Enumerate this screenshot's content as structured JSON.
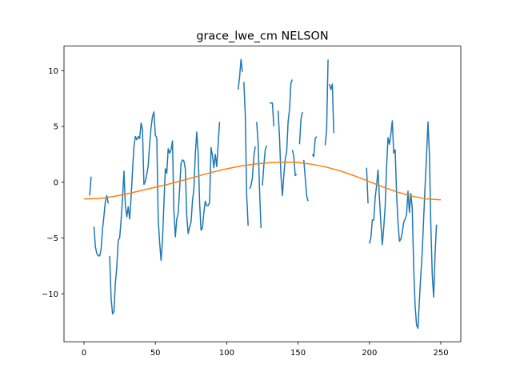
{
  "chart_data": {
    "type": "line",
    "title": "grace_lwe_cm NELSON",
    "xlabel": "",
    "ylabel": "",
    "xlim": [
      -14,
      264
    ],
    "ylim": [
      -14.3,
      12.2
    ],
    "xticks": [
      0,
      50,
      100,
      150,
      200,
      250
    ],
    "yticks": [
      -10,
      -5,
      0,
      5,
      10
    ],
    "grid": false,
    "legend": "none",
    "series": [
      {
        "color": "#1f77b4",
        "segments": [
          [
            [
              4,
              -1.2
            ],
            [
              5,
              0.5
            ]
          ],
          [
            [
              7,
              -4.0
            ],
            [
              8,
              -5.8
            ],
            [
              9,
              -6.4
            ],
            [
              10,
              -6.6
            ],
            [
              11,
              -6.6
            ],
            [
              12,
              -6.0
            ],
            [
              13,
              -4.2
            ],
            [
              14,
              -3.0
            ],
            [
              15,
              -1.7
            ],
            [
              16,
              -1.2
            ],
            [
              17,
              -1.9
            ]
          ],
          [
            [
              18,
              -6.6
            ],
            [
              19,
              -10.4
            ],
            [
              20,
              -11.8
            ],
            [
              21,
              -11.6
            ],
            [
              22,
              -9.0
            ],
            [
              23,
              -7.6
            ],
            [
              24,
              -5.2
            ],
            [
              25,
              -5.0
            ],
            [
              26,
              -3.4
            ],
            [
              27,
              -1.5
            ],
            [
              28,
              1.0
            ],
            [
              29,
              -2.1
            ],
            [
              30,
              -3.1
            ],
            [
              31,
              -2.2
            ],
            [
              32,
              -3.3
            ],
            [
              33,
              -1.4
            ],
            [
              34,
              1.0
            ],
            [
              35,
              3.2
            ],
            [
              36,
              4.1
            ],
            [
              37,
              3.8
            ],
            [
              38,
              4.1
            ],
            [
              39,
              3.9
            ],
            [
              40,
              5.3
            ],
            [
              41,
              4.7
            ],
            [
              42,
              -0.2
            ],
            [
              43,
              0.1
            ],
            [
              44,
              0.7
            ],
            [
              45,
              1.5
            ],
            [
              46,
              3.4
            ],
            [
              47,
              4.9
            ],
            [
              48,
              5.9
            ],
            [
              49,
              6.3
            ],
            [
              50,
              4.2
            ],
            [
              51,
              4.0
            ],
            [
              52,
              -3.3
            ],
            [
              53,
              -5.4
            ],
            [
              54,
              -7.0
            ],
            [
              55,
              -5.2
            ],
            [
              56,
              -1.9
            ],
            [
              57,
              1.2
            ],
            [
              58,
              0.8
            ],
            [
              59,
              3.0
            ],
            [
              60,
              2.6
            ],
            [
              61,
              2.9
            ],
            [
              62,
              3.7
            ],
            [
              63,
              -2.6
            ],
            [
              64,
              -4.9
            ],
            [
              65,
              -3.3
            ],
            [
              66,
              -2.8
            ],
            [
              67,
              -0.6
            ],
            [
              68,
              1.7
            ],
            [
              69,
              2.0
            ],
            [
              70,
              1.9
            ],
            [
              71,
              1.2
            ],
            [
              72,
              -3.0
            ],
            [
              73,
              -4.6
            ],
            [
              74,
              -4.0
            ],
            [
              75,
              -3.6
            ],
            [
              76,
              -1.7
            ],
            [
              77,
              -0.6
            ],
            [
              78,
              2.5
            ],
            [
              79,
              4.5
            ],
            [
              80,
              2.6
            ],
            [
              81,
              -1.8
            ],
            [
              82,
              -4.3
            ],
            [
              83,
              -4.1
            ],
            [
              84,
              -2.7
            ],
            [
              85,
              -1.7
            ],
            [
              86,
              -2.1
            ],
            [
              87,
              -2.1
            ],
            [
              88,
              -1.8
            ],
            [
              89,
              3.1
            ],
            [
              90,
              2.4
            ],
            [
              91,
              1.3
            ],
            [
              92,
              2.5
            ],
            [
              93,
              1.4
            ],
            [
              94,
              3.4
            ],
            [
              95,
              5.4
            ]
          ],
          [
            [
              108,
              8.3
            ],
            [
              109,
              9.4
            ],
            [
              110,
              11.0
            ],
            [
              111,
              9.9
            ]
          ],
          [
            [
              112,
              9.0
            ],
            [
              113,
              6.1
            ],
            [
              114,
              -1.2
            ],
            [
              115,
              -3.9
            ]
          ],
          [
            [
              116,
              -0.6
            ],
            [
              117,
              -0.3
            ],
            [
              118,
              0.4
            ],
            [
              119,
              2.3
            ],
            [
              120,
              3.2
            ]
          ],
          [
            [
              121,
              5.4
            ],
            [
              122,
              3.5
            ],
            [
              123,
              -0.6
            ],
            [
              124,
              -4.1
            ]
          ],
          [
            [
              125,
              -0.3
            ],
            [
              126,
              1.5
            ],
            [
              127,
              2.9
            ],
            [
              128,
              3.3
            ]
          ],
          [
            [
              130,
              7.1
            ],
            [
              131,
              7.1
            ],
            [
              132,
              7.1
            ],
            [
              133,
              5.0
            ]
          ],
          [
            [
              136,
              6.4
            ],
            [
              137,
              4.0
            ],
            [
              138,
              0.6
            ],
            [
              139,
              -1.2
            ],
            [
              140,
              0.6
            ],
            [
              141,
              2.1
            ],
            [
              142,
              2.7
            ],
            [
              143,
              5.4
            ],
            [
              144,
              6.5
            ],
            [
              145,
              8.9
            ],
            [
              146,
              9.2
            ]
          ],
          [
            [
              146,
              2.9
            ],
            [
              147,
              2.3
            ],
            [
              148,
              0.6
            ],
            [
              149,
              0.7
            ]
          ],
          [
            [
              151,
              3.4
            ],
            [
              152,
              5.6
            ],
            [
              153,
              6.3
            ]
          ],
          [
            [
              154,
              2.0
            ],
            [
              155,
              0.4
            ],
            [
              156,
              -1.2
            ],
            [
              157,
              -1.7
            ]
          ],
          [
            [
              160,
              2.5
            ],
            [
              161,
              2.3
            ],
            [
              162,
              3.9
            ],
            [
              163,
              4.1
            ]
          ],
          [
            [
              169,
              3.3
            ],
            [
              170,
              4.7
            ],
            [
              171,
              11.0
            ]
          ],
          [
            [
              172,
              8.8
            ],
            [
              173,
              8.3
            ],
            [
              174,
              8.8
            ],
            [
              175,
              4.4
            ]
          ],
          [
            [
              198,
              1.3
            ],
            [
              199,
              -1.9
            ]
          ],
          [
            [
              200,
              -5.5
            ],
            [
              201,
              -5.0
            ],
            [
              202,
              -3.4
            ],
            [
              203,
              -3.4
            ],
            [
              204,
              -1.4
            ],
            [
              205,
              -0.3
            ],
            [
              206,
              1.1
            ],
            [
              207,
              -1.4
            ],
            [
              208,
              -3.7
            ],
            [
              209,
              -5.6
            ],
            [
              210,
              -4.1
            ],
            [
              211,
              -2.2
            ],
            [
              212,
              1.4
            ],
            [
              213,
              4.0
            ],
            [
              214,
              3.4
            ],
            [
              215,
              4.3
            ],
            [
              216,
              5.5
            ],
            [
              217,
              2.6
            ],
            [
              218,
              2.9
            ],
            [
              219,
              -1.0
            ],
            [
              220,
              -3.6
            ],
            [
              221,
              -5.3
            ],
            [
              222,
              -5.1
            ],
            [
              223,
              -4.5
            ],
            [
              224,
              -3.6
            ],
            [
              225,
              -3.3
            ],
            [
              226,
              -2.9
            ],
            [
              227,
              -0.8
            ],
            [
              228,
              -2.7
            ],
            [
              229,
              -1.0
            ],
            [
              230,
              -2.4
            ],
            [
              231,
              -7.7
            ],
            [
              232,
              -11.1
            ],
            [
              233,
              -12.8
            ],
            [
              234,
              -13.1
            ],
            [
              235,
              -10.6
            ],
            [
              236,
              -8.3
            ],
            [
              237,
              -6.2
            ],
            [
              238,
              -3.2
            ],
            [
              239,
              -0.3
            ],
            [
              240,
              2.4
            ],
            [
              241,
              5.4
            ],
            [
              242,
              2.6
            ],
            [
              243,
              -3.8
            ],
            [
              244,
              -8.3
            ],
            [
              245,
              -10.3
            ],
            [
              246,
              -6.4
            ],
            [
              247,
              -3.8
            ]
          ]
        ]
      },
      {
        "color": "#ff7f0e",
        "segments": [
          [
            [
              0,
              -1.5
            ],
            [
              10,
              -1.47
            ],
            [
              20,
              -1.3
            ],
            [
              30,
              -1.05
            ],
            [
              40,
              -0.75
            ],
            [
              50,
              -0.45
            ],
            [
              60,
              -0.15
            ],
            [
              70,
              0.2
            ],
            [
              80,
              0.55
            ],
            [
              90,
              0.9
            ],
            [
              100,
              1.2
            ],
            [
              110,
              1.45
            ],
            [
              120,
              1.63
            ],
            [
              130,
              1.75
            ],
            [
              140,
              1.8
            ],
            [
              150,
              1.77
            ],
            [
              160,
              1.6
            ],
            [
              170,
              1.35
            ],
            [
              180,
              1.0
            ],
            [
              190,
              0.55
            ],
            [
              200,
              0.05
            ],
            [
              210,
              -0.45
            ],
            [
              220,
              -0.9
            ],
            [
              230,
              -1.25
            ],
            [
              240,
              -1.5
            ],
            [
              250,
              -1.58
            ]
          ]
        ]
      }
    ]
  }
}
